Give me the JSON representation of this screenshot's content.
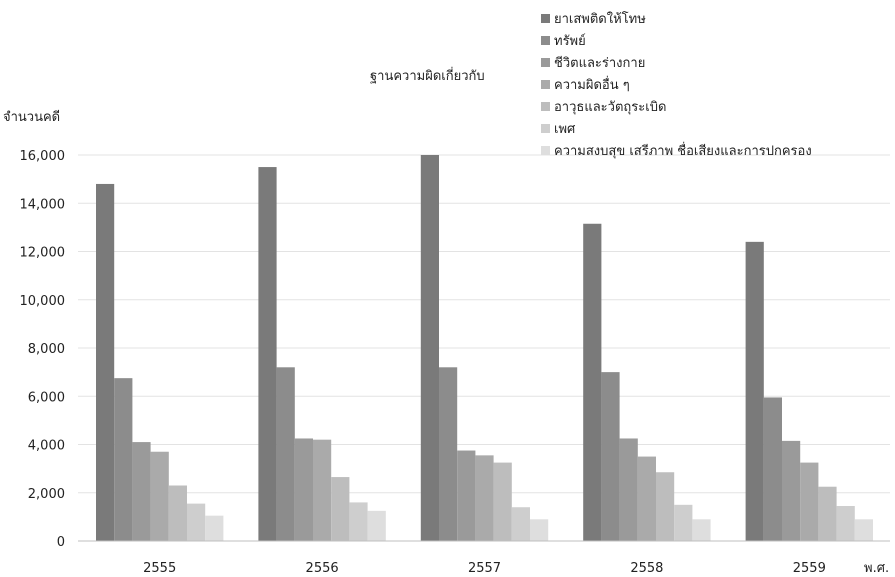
{
  "chart_data": {
    "type": "bar",
    "legend_title": "ฐานความผิดเกี่ยวกับ",
    "ylabel": "จำนวนคดี",
    "xlabel": "พ.ศ.",
    "categories": [
      "2555",
      "2556",
      "2557",
      "2558",
      "2559"
    ],
    "ylim": [
      0,
      16000
    ],
    "yticks": [
      0,
      2000,
      4000,
      6000,
      8000,
      10000,
      12000,
      14000,
      16000
    ],
    "ytick_labels": [
      "0",
      "2,000",
      "4,000",
      "6,000",
      "8,000",
      "10,000",
      "12,000",
      "14,000",
      "16,000"
    ],
    "grid": true,
    "legend_position": "top-right",
    "series": [
      {
        "name": "ยาเสพติดให้โทษ",
        "color": "#7a7a7a",
        "values": [
          14800,
          15500,
          16000,
          13150,
          12400
        ]
      },
      {
        "name": "ทรัพย์",
        "color": "#8c8c8c",
        "values": [
          6750,
          7200,
          7200,
          7000,
          5950
        ]
      },
      {
        "name": "ชีวิตและร่างกาย",
        "color": "#9a9a9a",
        "values": [
          4100,
          4250,
          3750,
          4250,
          4150
        ]
      },
      {
        "name": "ความผิดอื่น ๆ",
        "color": "#aaaaaa",
        "values": [
          3700,
          4200,
          3550,
          3500,
          3250
        ]
      },
      {
        "name": "อาวุธและวัตถุระเบิด",
        "color": "#bdbdbd",
        "values": [
          2300,
          2650,
          3250,
          2850,
          2250
        ]
      },
      {
        "name": "เพศ",
        "color": "#cecece",
        "values": [
          1550,
          1600,
          1400,
          1500,
          1450
        ]
      },
      {
        "name": "ความสงบสุข เสรีภาพ ชื่อเสียงและการปกครอง",
        "color": "#dedede",
        "values": [
          1050,
          1250,
          900,
          900,
          900
        ]
      }
    ]
  }
}
